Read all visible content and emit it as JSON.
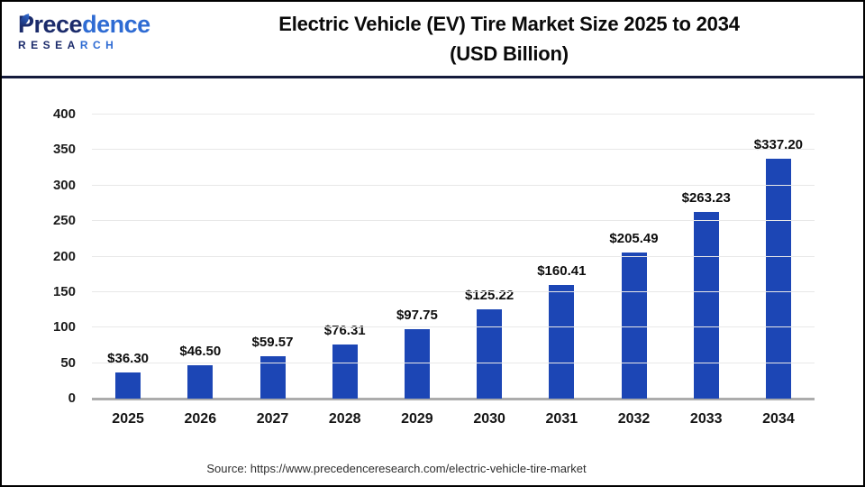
{
  "header": {
    "logo": {
      "brand_part1": "Prece",
      "brand_part2": "dence",
      "sub_part1": "RESEA",
      "sub_part2": "RCH"
    },
    "title_line1": "Electric Vehicle (EV) Tire Market Size 2025 to 2034",
    "title_line2": "(USD Billion)"
  },
  "chart_data": {
    "type": "bar",
    "title": "Electric Vehicle (EV) Tire Market Size 2025 to 2034 (USD Billion)",
    "categories": [
      "2025",
      "2026",
      "2027",
      "2028",
      "2029",
      "2030",
      "2031",
      "2032",
      "2033",
      "2034"
    ],
    "values": [
      36.3,
      46.5,
      59.57,
      76.31,
      97.75,
      125.22,
      160.41,
      205.49,
      263.23,
      337.2
    ],
    "value_labels": [
      "$36.30",
      "$46.50",
      "$59.57",
      "$76.31",
      "$97.75",
      "$125.22",
      "$160.41",
      "$205.49",
      "$263.23",
      "$337.20"
    ],
    "xlabel": "",
    "ylabel": "",
    "ylim": [
      0,
      400
    ],
    "ytick_step": 50,
    "grid": true,
    "legend": "none",
    "bar_color": "#1C46B5"
  },
  "colors": {
    "bar": "#1C46B5",
    "header_divider": "#141B3C",
    "logo_navy": "#1B2B6B",
    "logo_blue": "#2E6BD3",
    "gridline": "#e8e8e8",
    "baseline": "#ACACAC",
    "outer_border": "#000000"
  },
  "footer": {
    "source_text": "Source: https://www.precedenceresearch.com/electric-vehicle-tire-market"
  }
}
